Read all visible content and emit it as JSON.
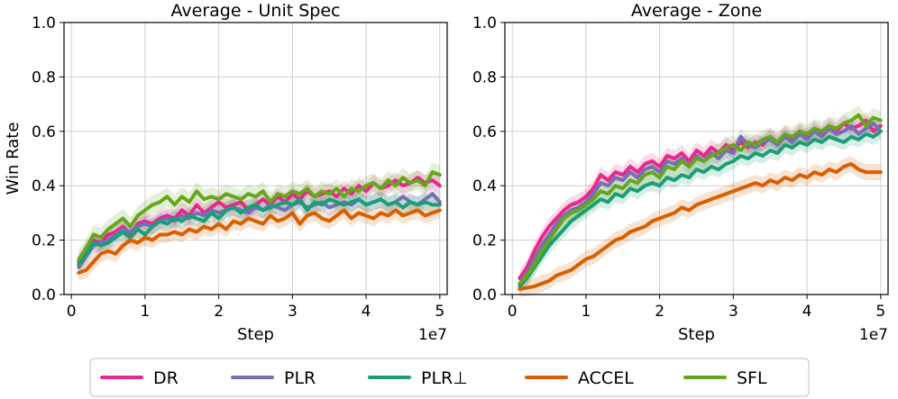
{
  "chart_data": [
    {
      "type": "line",
      "title": "Average - Unit Spec",
      "xlabel": "Step",
      "ylabel": "Win Rate",
      "x_scale_label": "1e7",
      "xlim": [
        -0.1,
        5.1
      ],
      "ylim": [
        0.0,
        1.0
      ],
      "xticks": [
        0,
        1,
        2,
        3,
        4,
        5
      ],
      "yticks": [
        0.0,
        0.2,
        0.4,
        0.6,
        0.8,
        1.0
      ],
      "xtick_labels": [
        "0",
        "1",
        "2",
        "3",
        "4",
        "5"
      ],
      "ytick_labels": [
        "0.0",
        "0.2",
        "0.4",
        "0.6",
        "0.8",
        "1.0"
      ],
      "grid": true,
      "x": [
        0.1,
        0.2,
        0.3,
        0.4,
        0.5,
        0.6,
        0.7,
        0.8,
        0.9,
        1.0,
        1.1,
        1.2,
        1.3,
        1.4,
        1.5,
        1.6,
        1.7,
        1.8,
        1.9,
        2.0,
        2.1,
        2.2,
        2.3,
        2.4,
        2.5,
        2.6,
        2.7,
        2.8,
        2.9,
        3.0,
        3.1,
        3.2,
        3.3,
        3.4,
        3.5,
        3.6,
        3.7,
        3.8,
        3.9,
        4.0,
        4.1,
        4.2,
        4.3,
        4.4,
        4.5,
        4.6,
        4.7,
        4.8,
        4.9,
        5.0
      ],
      "series": [
        {
          "name": "DR",
          "color": "#e7298a",
          "band": 0.03,
          "values": [
            0.12,
            0.16,
            0.2,
            0.19,
            0.22,
            0.23,
            0.25,
            0.22,
            0.26,
            0.27,
            0.26,
            0.28,
            0.29,
            0.28,
            0.31,
            0.29,
            0.33,
            0.3,
            0.32,
            0.34,
            0.32,
            0.33,
            0.34,
            0.31,
            0.33,
            0.35,
            0.33,
            0.36,
            0.34,
            0.37,
            0.35,
            0.38,
            0.36,
            0.37,
            0.38,
            0.36,
            0.39,
            0.37,
            0.4,
            0.38,
            0.41,
            0.39,
            0.4,
            0.42,
            0.4,
            0.41,
            0.43,
            0.41,
            0.42,
            0.4
          ]
        },
        {
          "name": "PLR",
          "color": "#7570b3",
          "band": 0.03,
          "values": [
            0.1,
            0.14,
            0.18,
            0.19,
            0.2,
            0.22,
            0.24,
            0.23,
            0.25,
            0.26,
            0.25,
            0.27,
            0.28,
            0.27,
            0.29,
            0.28,
            0.3,
            0.29,
            0.31,
            0.3,
            0.31,
            0.32,
            0.31,
            0.3,
            0.32,
            0.31,
            0.33,
            0.32,
            0.31,
            0.33,
            0.34,
            0.32,
            0.33,
            0.34,
            0.32,
            0.33,
            0.34,
            0.33,
            0.35,
            0.33,
            0.34,
            0.35,
            0.33,
            0.34,
            0.36,
            0.34,
            0.33,
            0.35,
            0.37,
            0.34
          ]
        },
        {
          "name": "PLR⊥",
          "color": "#1b9e77",
          "band": 0.03,
          "values": [
            0.11,
            0.15,
            0.19,
            0.18,
            0.19,
            0.21,
            0.23,
            0.21,
            0.24,
            0.22,
            0.25,
            0.27,
            0.26,
            0.28,
            0.27,
            0.29,
            0.28,
            0.27,
            0.3,
            0.28,
            0.31,
            0.32,
            0.3,
            0.32,
            0.33,
            0.31,
            0.32,
            0.33,
            0.34,
            0.33,
            0.35,
            0.31,
            0.34,
            0.33,
            0.35,
            0.34,
            0.33,
            0.34,
            0.35,
            0.33,
            0.34,
            0.35,
            0.33,
            0.34,
            0.32,
            0.34,
            0.33,
            0.34,
            0.33,
            0.33
          ]
        },
        {
          "name": "ACCEL",
          "color": "#d95f02",
          "band": 0.03,
          "values": [
            0.08,
            0.09,
            0.12,
            0.15,
            0.16,
            0.15,
            0.18,
            0.2,
            0.19,
            0.21,
            0.2,
            0.22,
            0.22,
            0.23,
            0.22,
            0.24,
            0.23,
            0.25,
            0.24,
            0.26,
            0.24,
            0.27,
            0.26,
            0.28,
            0.27,
            0.26,
            0.29,
            0.27,
            0.28,
            0.3,
            0.26,
            0.29,
            0.3,
            0.28,
            0.27,
            0.29,
            0.31,
            0.28,
            0.3,
            0.29,
            0.28,
            0.3,
            0.29,
            0.31,
            0.29,
            0.3,
            0.31,
            0.29,
            0.3,
            0.31
          ]
        },
        {
          "name": "SFL",
          "color": "#66a61e",
          "band": 0.035,
          "values": [
            0.13,
            0.17,
            0.22,
            0.21,
            0.24,
            0.26,
            0.28,
            0.25,
            0.29,
            0.31,
            0.33,
            0.34,
            0.36,
            0.33,
            0.36,
            0.34,
            0.38,
            0.35,
            0.36,
            0.35,
            0.37,
            0.36,
            0.35,
            0.37,
            0.36,
            0.38,
            0.34,
            0.37,
            0.36,
            0.38,
            0.37,
            0.39,
            0.36,
            0.38,
            0.37,
            0.39,
            0.36,
            0.39,
            0.38,
            0.4,
            0.41,
            0.39,
            0.42,
            0.4,
            0.43,
            0.41,
            0.42,
            0.4,
            0.45,
            0.44
          ]
        }
      ]
    },
    {
      "type": "line",
      "title": "Average - Zone",
      "xlabel": "Step",
      "ylabel": "",
      "x_scale_label": "1e7",
      "xlim": [
        -0.1,
        5.1
      ],
      "ylim": [
        0.0,
        1.0
      ],
      "xticks": [
        0,
        1,
        2,
        3,
        4,
        5
      ],
      "yticks": [
        0.0,
        0.2,
        0.4,
        0.6,
        0.8,
        1.0
      ],
      "xtick_labels": [
        "0",
        "1",
        "2",
        "3",
        "4",
        "5"
      ],
      "ytick_labels": [
        "0.0",
        "0.2",
        "0.4",
        "0.6",
        "0.8",
        "1.0"
      ],
      "grid": true,
      "x": [
        0.1,
        0.2,
        0.3,
        0.4,
        0.5,
        0.6,
        0.7,
        0.8,
        0.9,
        1.0,
        1.1,
        1.2,
        1.3,
        1.4,
        1.5,
        1.6,
        1.7,
        1.8,
        1.9,
        2.0,
        2.1,
        2.2,
        2.3,
        2.4,
        2.5,
        2.6,
        2.7,
        2.8,
        2.9,
        3.0,
        3.1,
        3.2,
        3.3,
        3.4,
        3.5,
        3.6,
        3.7,
        3.8,
        3.9,
        4.0,
        4.1,
        4.2,
        4.3,
        4.4,
        4.5,
        4.6,
        4.7,
        4.8,
        4.9,
        5.0
      ],
      "series": [
        {
          "name": "DR",
          "color": "#e7298a",
          "band": 0.03,
          "values": [
            0.06,
            0.1,
            0.16,
            0.21,
            0.25,
            0.28,
            0.31,
            0.33,
            0.34,
            0.36,
            0.39,
            0.44,
            0.42,
            0.45,
            0.44,
            0.47,
            0.45,
            0.48,
            0.49,
            0.47,
            0.51,
            0.5,
            0.52,
            0.49,
            0.53,
            0.51,
            0.54,
            0.52,
            0.55,
            0.53,
            0.56,
            0.54,
            0.56,
            0.55,
            0.58,
            0.56,
            0.59,
            0.57,
            0.6,
            0.58,
            0.61,
            0.59,
            0.62,
            0.6,
            0.63,
            0.61,
            0.62,
            0.64,
            0.6,
            0.62
          ]
        },
        {
          "name": "PLR",
          "color": "#7570b3",
          "band": 0.03,
          "values": [
            0.04,
            0.08,
            0.13,
            0.18,
            0.22,
            0.26,
            0.29,
            0.31,
            0.32,
            0.34,
            0.37,
            0.41,
            0.4,
            0.43,
            0.42,
            0.45,
            0.43,
            0.46,
            0.47,
            0.45,
            0.49,
            0.48,
            0.5,
            0.47,
            0.51,
            0.49,
            0.52,
            0.5,
            0.53,
            0.52,
            0.58,
            0.55,
            0.54,
            0.56,
            0.57,
            0.55,
            0.58,
            0.56,
            0.59,
            0.57,
            0.6,
            0.58,
            0.61,
            0.59,
            0.6,
            0.62,
            0.59,
            0.61,
            0.63,
            0.6
          ]
        },
        {
          "name": "PLR⊥",
          "color": "#1b9e77",
          "band": 0.03,
          "values": [
            0.03,
            0.06,
            0.1,
            0.14,
            0.18,
            0.21,
            0.24,
            0.27,
            0.29,
            0.31,
            0.33,
            0.35,
            0.34,
            0.37,
            0.36,
            0.39,
            0.38,
            0.4,
            0.41,
            0.4,
            0.43,
            0.42,
            0.44,
            0.43,
            0.46,
            0.45,
            0.47,
            0.46,
            0.48,
            0.49,
            0.51,
            0.5,
            0.52,
            0.51,
            0.53,
            0.52,
            0.55,
            0.54,
            0.56,
            0.55,
            0.57,
            0.56,
            0.58,
            0.57,
            0.56,
            0.58,
            0.57,
            0.59,
            0.58,
            0.6
          ]
        },
        {
          "name": "ACCEL",
          "color": "#d95f02",
          "band": 0.03,
          "values": [
            0.02,
            0.025,
            0.03,
            0.04,
            0.05,
            0.07,
            0.08,
            0.09,
            0.11,
            0.13,
            0.14,
            0.16,
            0.18,
            0.2,
            0.21,
            0.23,
            0.24,
            0.25,
            0.27,
            0.28,
            0.29,
            0.3,
            0.32,
            0.31,
            0.33,
            0.34,
            0.35,
            0.36,
            0.37,
            0.38,
            0.39,
            0.4,
            0.41,
            0.4,
            0.42,
            0.41,
            0.43,
            0.42,
            0.44,
            0.43,
            0.45,
            0.44,
            0.46,
            0.45,
            0.47,
            0.48,
            0.46,
            0.45,
            0.45,
            0.45
          ]
        },
        {
          "name": "SFL",
          "color": "#66a61e",
          "band": 0.035,
          "values": [
            0.04,
            0.07,
            0.11,
            0.16,
            0.2,
            0.24,
            0.28,
            0.3,
            0.31,
            0.33,
            0.35,
            0.38,
            0.37,
            0.4,
            0.39,
            0.42,
            0.41,
            0.44,
            0.45,
            0.43,
            0.47,
            0.46,
            0.49,
            0.47,
            0.5,
            0.49,
            0.51,
            0.52,
            0.54,
            0.55,
            0.53,
            0.56,
            0.55,
            0.57,
            0.58,
            0.56,
            0.59,
            0.58,
            0.6,
            0.59,
            0.61,
            0.6,
            0.62,
            0.61,
            0.63,
            0.64,
            0.66,
            0.62,
            0.65,
            0.64
          ]
        }
      ]
    }
  ],
  "legend": {
    "placement": "bottom-center",
    "entries": [
      "DR",
      "PLR",
      "PLR⊥",
      "ACCEL",
      "SFL"
    ]
  }
}
